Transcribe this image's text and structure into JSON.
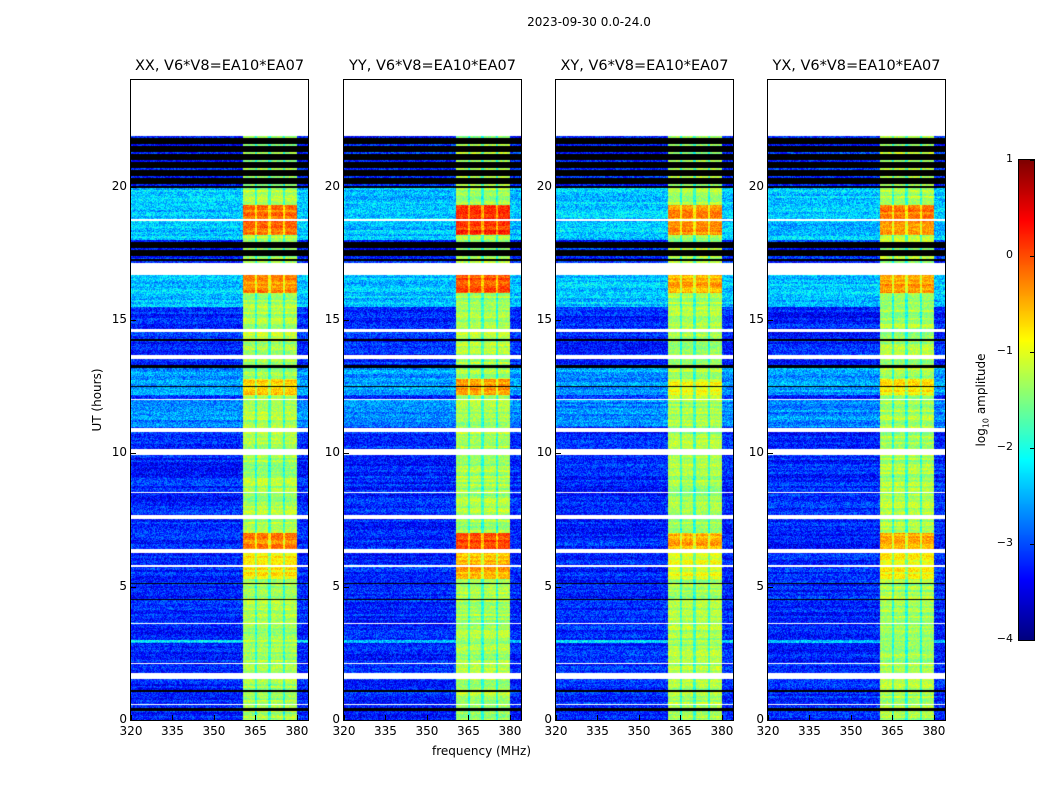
{
  "chart_data": {
    "type": "heatmap",
    "title": "2023-09-30 0.0-24.0",
    "xlabel": "frequency (MHz)",
    "ylabel": "UT (hours)",
    "xlim": [
      320,
      384
    ],
    "ylim": [
      0,
      24
    ],
    "xticks": [
      "320",
      "335",
      "350",
      "365",
      "380"
    ],
    "xtick_values": [
      320,
      335,
      350,
      365,
      380
    ],
    "yticks": [
      "0",
      "5",
      "10",
      "15",
      "20"
    ],
    "ytick_values": [
      0,
      5,
      10,
      15,
      20
    ],
    "panels": [
      {
        "title": "XX, V6*V8=EA10*EA07",
        "seed": 11,
        "hot_boost": 0.0
      },
      {
        "title": "YY, V6*V8=EA10*EA07",
        "seed": 23,
        "hot_boost": 0.3
      },
      {
        "title": "XY, V6*V8=EA10*EA07",
        "seed": 37,
        "hot_boost": -0.2
      },
      {
        "title": "YX, V6*V8=EA10*EA07",
        "seed": 41,
        "hot_boost": -0.1
      }
    ],
    "signal_band_mhz": [
      360.5,
      380
    ],
    "subband_gaps_mhz": [
      365.2,
      370.2,
      375.3
    ],
    "background_log10": -3.2,
    "band_log10": -1.3,
    "brighter_background_hours": [
      [
        18.0,
        20.0,
        -2.4
      ],
      [
        15.5,
        16.7,
        -2.4
      ],
      [
        12.2,
        13.2,
        -2.6
      ],
      [
        11.0,
        12.0,
        -2.7
      ],
      [
        2.9,
        3.0,
        -2.3
      ]
    ],
    "hot_band_hours": [
      [
        18.2,
        19.3,
        -0.15
      ],
      [
        16.0,
        16.7,
        -0.3
      ],
      [
        6.4,
        7.0,
        -0.3
      ],
      [
        12.2,
        12.8,
        -0.7
      ],
      [
        5.3,
        6.3,
        -0.8
      ]
    ],
    "flagged_white_hours": [
      [
        21.9,
        24
      ],
      [
        16.7,
        17.15
      ],
      [
        18.7,
        18.8
      ],
      [
        14.55,
        14.65
      ],
      [
        13.55,
        13.7
      ],
      [
        12.0,
        12.05
      ],
      [
        10.8,
        10.95
      ],
      [
        9.95,
        10.15
      ],
      [
        8.5,
        8.55
      ],
      [
        7.55,
        7.7
      ],
      [
        6.25,
        6.4
      ],
      [
        5.75,
        5.8
      ],
      [
        3.6,
        3.65
      ],
      [
        2.1,
        2.15
      ],
      [
        1.55,
        1.75
      ],
      [
        0.55,
        0.6
      ]
    ],
    "nodata_black_hours": [
      [
        19.95,
        21.9
      ],
      [
        17.4,
        17.95
      ],
      [
        17.2,
        17.3
      ],
      [
        14.2,
        14.3
      ],
      [
        13.2,
        13.3
      ],
      [
        12.5,
        12.55
      ],
      [
        5.05,
        5.15
      ],
      [
        4.5,
        4.55
      ],
      [
        1.05,
        1.12
      ],
      [
        0.35,
        0.45
      ]
    ],
    "colorbar": {
      "label": "log10 amplitude",
      "label_base": "log",
      "label_sub": "10",
      "label_rest": " amplitude",
      "range": [
        -4,
        1
      ],
      "ticks": [
        "1",
        "0",
        "−1",
        "−2",
        "−3",
        "−4"
      ],
      "tick_values": [
        1,
        0,
        -1,
        -2,
        -3,
        -4
      ],
      "colormap": "jet"
    }
  }
}
